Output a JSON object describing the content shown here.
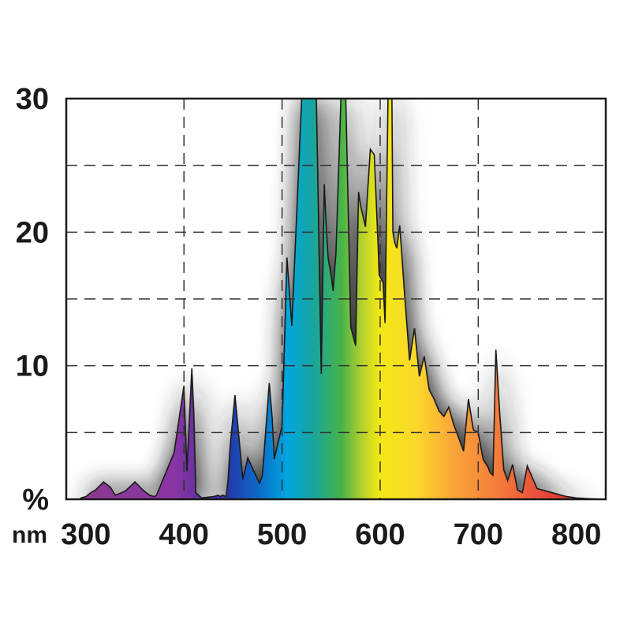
{
  "chart_data": {
    "type": "area",
    "title": "",
    "xlabel": "",
    "ylabel": "",
    "y_unit": "%",
    "x_unit": "nm",
    "xlim": [
      280,
      830
    ],
    "ylim": [
      0,
      30
    ],
    "x_ticks": [
      300,
      400,
      500,
      600,
      700,
      800
    ],
    "y_ticks": [
      10,
      20,
      30
    ],
    "grid": true,
    "grid_style": "dashed",
    "fill": "visible-spectrum gradient",
    "series": [
      {
        "x": [
          295,
          300,
          305,
          310,
          318,
          325,
          330,
          340,
          350,
          358,
          365,
          370,
          372,
          390,
          400,
          403,
          408,
          410,
          412,
          418,
          430,
          435,
          437,
          439,
          440,
          443,
          445,
          447,
          452,
          460,
          465,
          470,
          477,
          480,
          487,
          490,
          492,
          500,
          505,
          510,
          520,
          530,
          535,
          540,
          543,
          545,
          547,
          550,
          552,
          555,
          560,
          563,
          565,
          570,
          574,
          575,
          578,
          580,
          585,
          590,
          594,
          598,
          599,
          603,
          605,
          608,
          610,
          612,
          613,
          615,
          617,
          620,
          625,
          630,
          635,
          640,
          645,
          650,
          655,
          660,
          665,
          670,
          675,
          680,
          685,
          690,
          695,
          700,
          705,
          710,
          712,
          715,
          718,
          722,
          726,
          730,
          735,
          740,
          745,
          750,
          760,
          770,
          780,
          785,
          790,
          800,
          825
        ],
        "y": [
          0.1,
          0.2,
          0.5,
          0.7,
          1.3,
          0.9,
          0.3,
          0.6,
          1.3,
          0.7,
          0.3,
          0.2,
          0.3,
          3.5,
          8.5,
          2.1,
          9.8,
          6.5,
          0.5,
          0.1,
          0.2,
          0.3,
          0.2,
          0.3,
          0.3,
          0.2,
          1.5,
          3.9,
          7.8,
          1.5,
          3.1,
          2.3,
          1.2,
          1.8,
          8.7,
          6.0,
          3.0,
          5.5,
          18.1,
          13.0,
          30.0,
          30.0,
          30.0,
          9.4,
          23.6,
          20.4,
          18.0,
          16.8,
          15.6,
          18.5,
          30.0,
          30.0,
          30.0,
          12.9,
          11.8,
          11.5,
          23.0,
          22.0,
          20.4,
          26.2,
          25.8,
          18.8,
          16.8,
          16.2,
          13.2,
          30.0,
          30.0,
          30.0,
          20.0,
          19.2,
          18.8,
          20.5,
          15.2,
          10.4,
          12.8,
          9.2,
          10.7,
          8.2,
          7.5,
          6.6,
          6.2,
          6.9,
          5.6,
          4.6,
          3.6,
          7.5,
          5.2,
          5.0,
          3.0,
          2.4,
          2.0,
          1.8,
          11.2,
          6.3,
          2.2,
          1.4,
          2.6,
          0.7,
          0.5,
          2.5,
          0.8,
          0.6,
          0.4,
          0.3,
          0.2,
          0.1,
          0.0
        ]
      }
    ]
  },
  "colors": {
    "axis": "#1a1a1a",
    "grid": "#333333",
    "outline": "#1a1a1a",
    "shadow": "#2a2a2a"
  }
}
